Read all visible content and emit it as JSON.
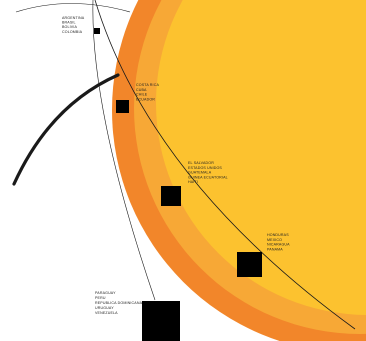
{
  "colors": {
    "background": "#ffffff",
    "outer_ring": "#f2862a",
    "middle_ring": "#f7a836",
    "inner_disc": "#fcc22f",
    "orbit_line": "#1a1a1a",
    "markers": "#000000"
  },
  "groups": [
    {
      "id": "group-1",
      "lines": [
        "ARGENTINA",
        "BRASIL",
        "BOLIVIA",
        "COLOMBIA"
      ]
    },
    {
      "id": "group-2",
      "lines": [
        "COSTA RICA",
        "CUBA",
        "CHILE",
        "ECUADOR"
      ]
    },
    {
      "id": "group-3",
      "lines": [
        "EL SALVADOR",
        "ESTADOS UNIDOS",
        "GUATEMALA",
        "GUINEA ECUATORIAL",
        "HAITI"
      ]
    },
    {
      "id": "group-4",
      "lines": [
        "HONDURAS",
        "MEXICO",
        "NICARAGUA",
        "PANAMA"
      ]
    },
    {
      "id": "group-5",
      "lines": [
        "PARAGUAY",
        "PERU",
        "REPUBLICA DOMINICANA",
        "URUGUAY",
        "VENEZUELA"
      ]
    }
  ]
}
